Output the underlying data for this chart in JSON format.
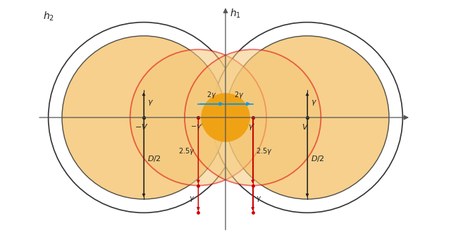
{
  "bg_color": "#ffffff",
  "orange_fill": "#f5c878",
  "orange_fill_alpha": 0.85,
  "orange_fill_inner": "#f5b830",
  "orange_fill_inner_alpha": 0.9,
  "outer_circle_edge": "#333333",
  "outer_circle_lw": 1.2,
  "inner_circle_edge": "#333333",
  "inner_circle_lw": 1.0,
  "red_circle_edge": "#dd0000",
  "red_circle_lw": 1.3,
  "red_circle_fill": "#f5c878",
  "red_circle_fill_alpha": 0.55,
  "V": 3.0,
  "gamma": 1.0,
  "D_half": 3.0,
  "gamma_outer": 0.5,
  "small_r": 2.5,
  "arrow_color_black": "#222222",
  "arrow_color_red": "#cc0000",
  "arrow_color_blue": "#1199dd",
  "text_color": "#222222",
  "axis_color": "#555555",
  "label_fontsize": 10,
  "annotation_fontsize": 8
}
